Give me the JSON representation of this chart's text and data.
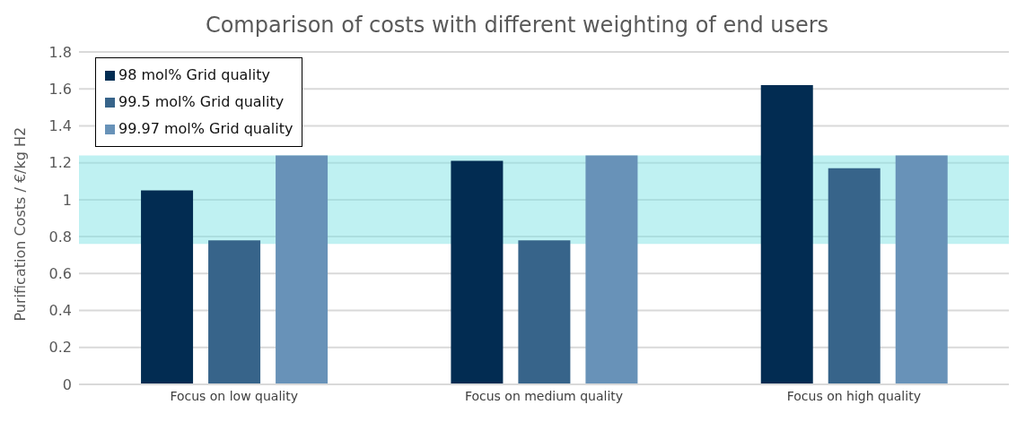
{
  "chart_data": {
    "type": "bar",
    "title": "Comparison of costs with different weighting of end users",
    "ylabel": "Purification Costs / €/kg H2",
    "categories": [
      "Focus on low quality",
      "Focus on medium quality",
      "Focus on high quality"
    ],
    "series": [
      {
        "name": "98 mol% Grid quality",
        "color": "#022c52",
        "values": [
          1.05,
          1.21,
          1.62
        ]
      },
      {
        "name": "99.5 mol% Grid quality",
        "color": "#37648a",
        "values": [
          0.78,
          0.78,
          1.17
        ]
      },
      {
        "name": "99.97 mol% Grid quality",
        "color": "#6892b8",
        "values": [
          1.24,
          1.24,
          1.24
        ]
      }
    ],
    "ylim": [
      0,
      1.8
    ],
    "yticks": [
      0,
      {
        "value": 0.2,
        "label": "0.2"
      },
      {
        "value": 0.4,
        "label": "0.4"
      },
      {
        "value": 0.6,
        "label": "0.6"
      },
      {
        "value": 0.8,
        "label": "0.8"
      },
      1,
      {
        "value": 1.2,
        "label": "1.2"
      },
      {
        "value": 1.4,
        "label": "1.4"
      },
      {
        "value": 1.6,
        "label": "1.6"
      },
      {
        "value": 1.8,
        "label": "1.8"
      }
    ],
    "bands": [
      {
        "axis": "y",
        "from": 0.76,
        "to": 1.24,
        "color": "#7fe3e6"
      }
    ],
    "grid": "y",
    "legend": "top left"
  }
}
